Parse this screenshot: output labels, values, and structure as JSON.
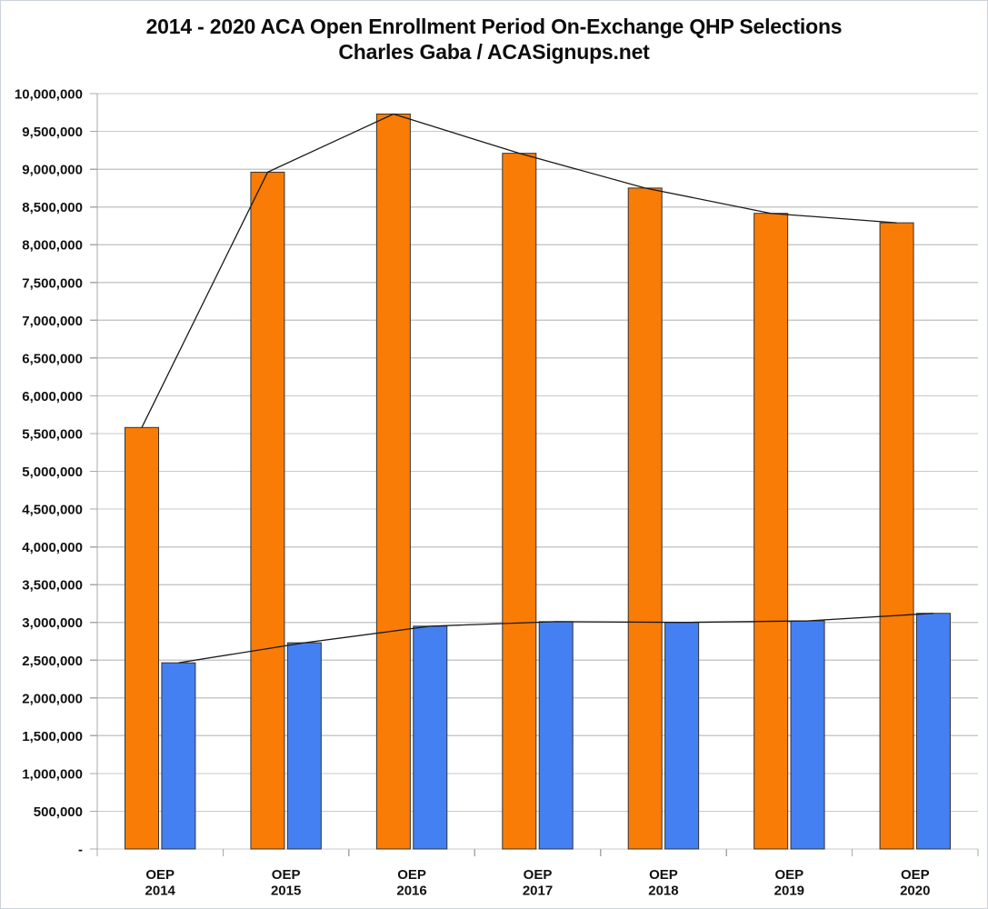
{
  "title": {
    "line1": "2014 - 2020 ACA Open Enrollment Period On-Exchange QHP Selections",
    "line2": "Charles Gaba / ACASignups.net"
  },
  "chart_data": {
    "type": "bar",
    "categories": [
      "2014",
      "2015",
      "2016",
      "2017",
      "2018",
      "2019",
      "2020"
    ],
    "x_tick_prefix": "OEP",
    "series": [
      {
        "name": "orange-bars",
        "color": "#F97C06",
        "values": [
          5580000,
          8960000,
          9730000,
          9210000,
          8750000,
          8415000,
          8290000
        ]
      },
      {
        "name": "blue-bars",
        "color": "#4580F2",
        "values": [
          2465000,
          2730000,
          2950000,
          3010000,
          3000000,
          3020000,
          3120000
        ]
      }
    ],
    "line_overlay": true,
    "line_color": "#1a1a1a",
    "bar_border_color": "#333333",
    "gridline_color": "#c9c9c9",
    "axis_color": "#a8a8a8",
    "grid": true,
    "legend": "none",
    "ylim": [
      0,
      10000000
    ],
    "y_tick_step": 500000,
    "y_tick_labels": [
      "-",
      "500,000",
      "1,000,000",
      "1,500,000",
      "2,000,000",
      "2,500,000",
      "3,000,000",
      "3,500,000",
      "4,000,000",
      "4,500,000",
      "5,000,000",
      "5,500,000",
      "6,000,000",
      "6,500,000",
      "7,000,000",
      "7,500,000",
      "8,000,000",
      "8,500,000",
      "9,000,000",
      "9,500,000",
      "10,000,000"
    ]
  }
}
